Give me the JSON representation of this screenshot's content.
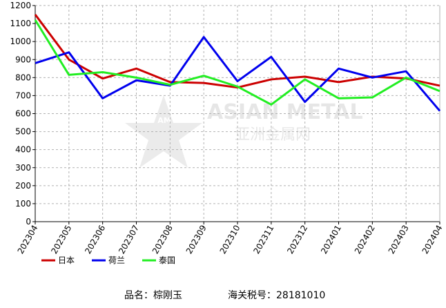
{
  "chart_data": {
    "type": "line",
    "categories": [
      "202304",
      "202305",
      "202306",
      "202307",
      "202308",
      "202309",
      "202310",
      "202311",
      "202312",
      "202401",
      "202402",
      "202403",
      "202404"
    ],
    "series": [
      {
        "name": "日本",
        "color": "#cc0000",
        "values": [
          1150,
          900,
          795,
          850,
          775,
          770,
          745,
          790,
          805,
          775,
          805,
          795,
          755
        ]
      },
      {
        "name": "荷兰",
        "color": "#0000ee",
        "values": [
          880,
          940,
          685,
          785,
          755,
          1025,
          780,
          915,
          665,
          850,
          800,
          835,
          615
        ]
      },
      {
        "name": "泰国",
        "color": "#22ee22",
        "values": [
          1120,
          815,
          830,
          800,
          760,
          810,
          750,
          650,
          790,
          685,
          690,
          800,
          725
        ]
      }
    ],
    "ylim": [
      0,
      1200
    ],
    "yticks": [
      0,
      100,
      200,
      300,
      400,
      500,
      600,
      700,
      800,
      900,
      1000,
      1100,
      1200
    ],
    "grid": true,
    "watermark": {
      "logo": "AM",
      "text": "ASIAN METAL",
      "subtext": "亚洲金属网"
    },
    "footer": {
      "product": "品名：棕刚玉",
      "hs_code": "海关税号：28181010"
    }
  }
}
